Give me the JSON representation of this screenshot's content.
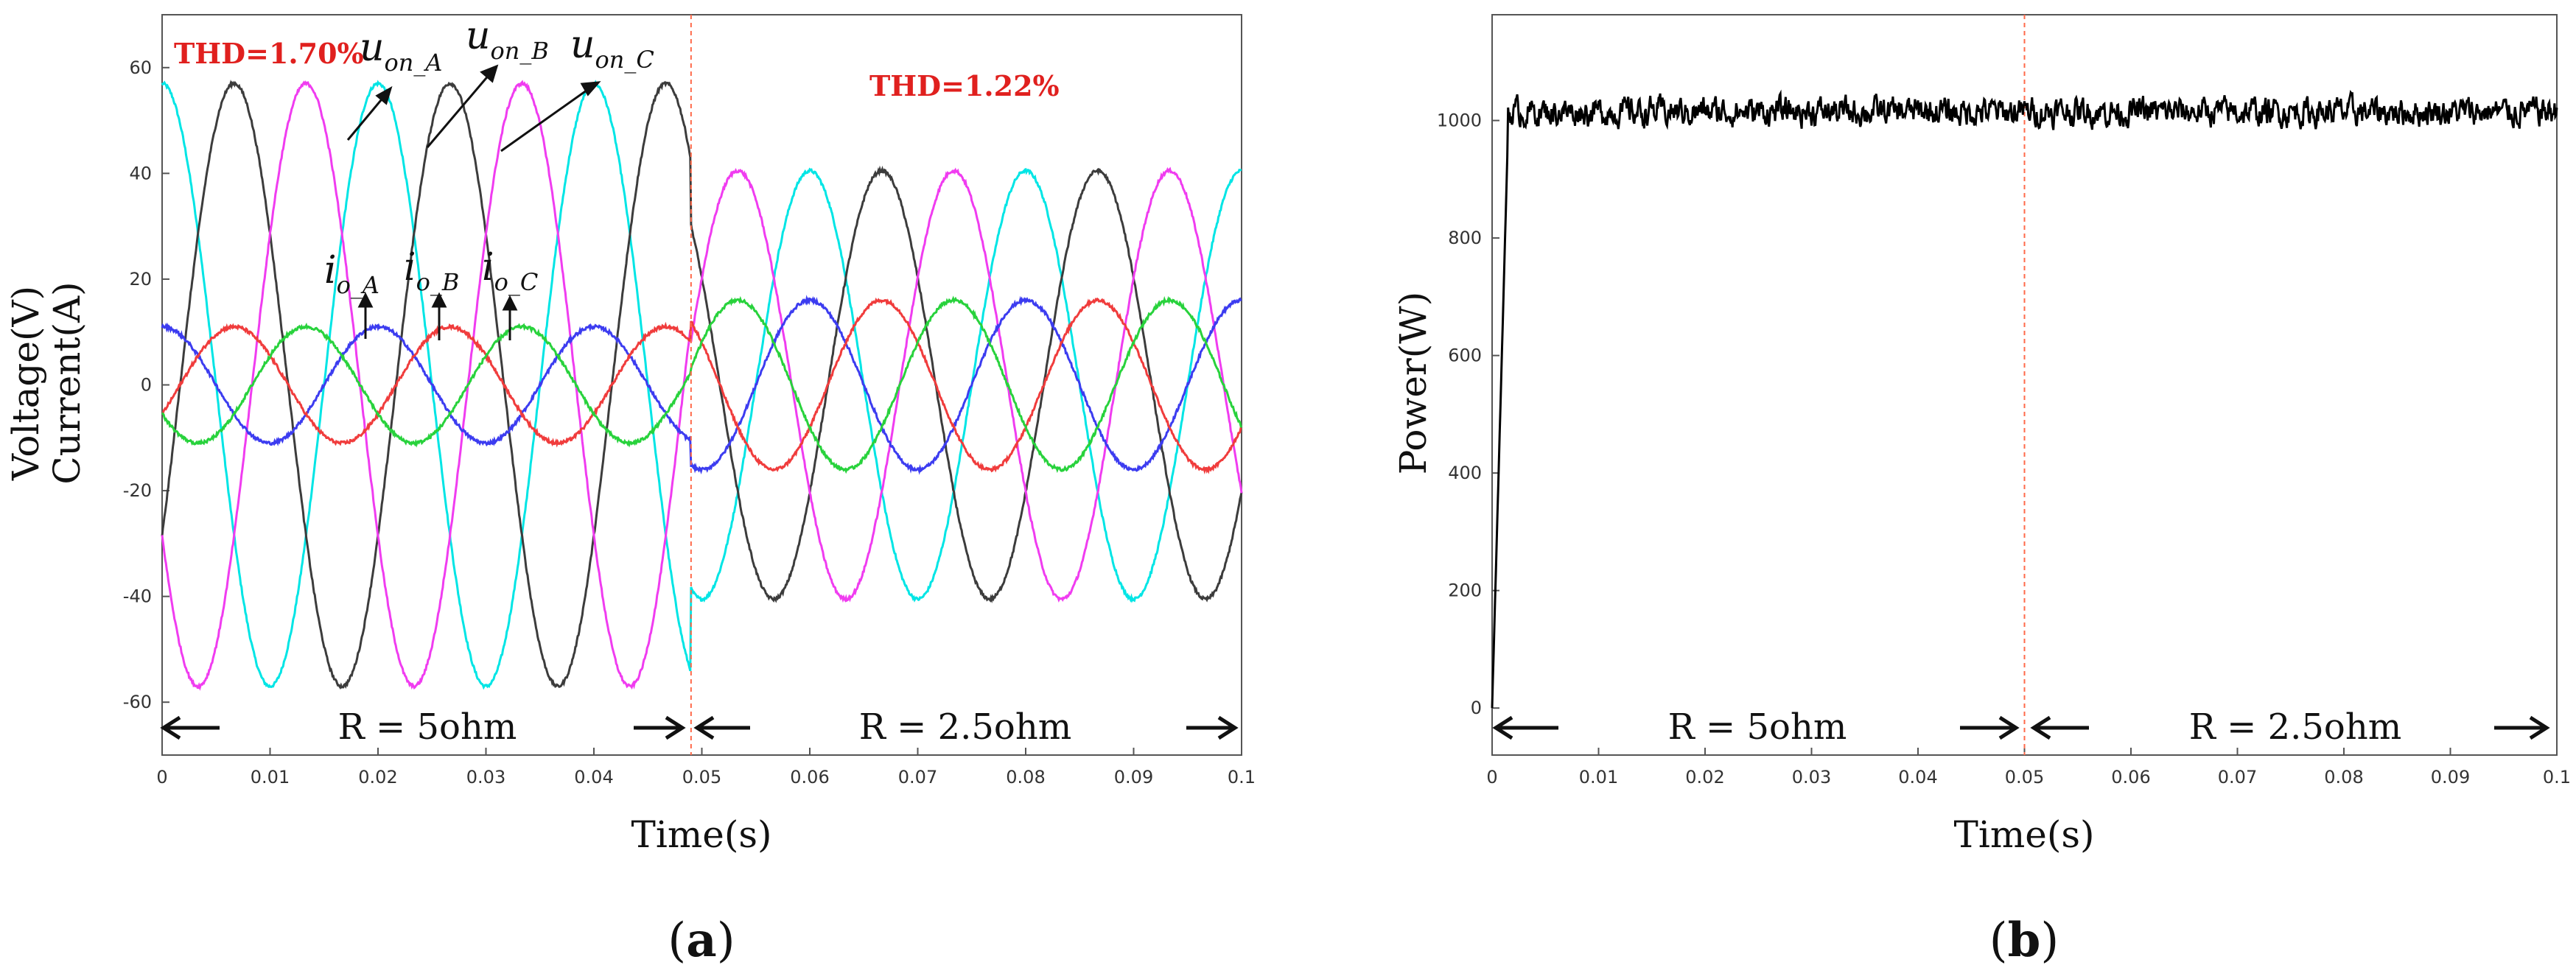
{
  "chart_data": [
    {
      "id": "a",
      "type": "line",
      "caption": "a",
      "xlabel": "Time(s)",
      "ylabel_line1": "Voltage(V)",
      "ylabel_line2": "Current(A)",
      "xlim": [
        0,
        0.1
      ],
      "ylim": [
        -70,
        70
      ],
      "xticks": [
        0,
        0.01,
        0.02,
        0.03,
        0.04,
        0.05,
        0.06,
        0.07,
        0.08,
        0.09,
        0.1
      ],
      "xtick_labels": [
        "0",
        "0.01",
        "0.02",
        "0.03",
        "0.04",
        "0.05",
        "0.06",
        "0.07",
        "0.08",
        "0.09",
        "0.1"
      ],
      "yticks": [
        -60,
        -40,
        -20,
        0,
        20,
        40,
        60
      ],
      "ytick_labels": [
        "-60",
        "-40",
        "-20",
        "0",
        "20",
        "40",
        "60"
      ],
      "frequency_hz": 50,
      "load_step_time": 0.049,
      "series": [
        {
          "name": "u_on_A",
          "color": "#00e5e5",
          "amp_before": 57,
          "amp_after": 40.5,
          "phase_deg": 90
        },
        {
          "name": "u_on_B",
          "color": "#3c3c3c",
          "amp_before": 57,
          "amp_after": 40.5,
          "phase_deg": -30
        },
        {
          "name": "u_on_C",
          "color": "#f03cf0",
          "amp_before": 57,
          "amp_after": 40.5,
          "phase_deg": 210
        },
        {
          "name": "i_o_A",
          "color": "#3c3cf0",
          "amp_before": 11,
          "amp_after": 16,
          "phase_deg": 90
        },
        {
          "name": "i_o_B",
          "color": "#f03c3c",
          "amp_before": 11,
          "amp_after": 16,
          "phase_deg": -30
        },
        {
          "name": "i_o_C",
          "color": "#28d23c",
          "amp_before": 11,
          "amp_after": 16,
          "phase_deg": 210
        }
      ],
      "annotations": {
        "thd_before": "THD=1.70%",
        "thd_after": "THD=1.22%",
        "region_before": "R = 5ohm",
        "region_after": "R = 2.5ohm",
        "u_main": "u",
        "u_sub_A": "on_A",
        "u_sub_B": "on_B",
        "u_sub_C": "on_C",
        "i_main": "i",
        "i_sub_A": "o_A",
        "i_sub_B": "o_B",
        "i_sub_C": "o_C"
      }
    },
    {
      "id": "b",
      "type": "line",
      "caption": "b",
      "xlabel": "Time(s)",
      "ylabel": "Power(W)",
      "xlim": [
        0,
        0.1
      ],
      "ylim": [
        -80,
        1180
      ],
      "xticks": [
        0,
        0.01,
        0.02,
        0.03,
        0.04,
        0.05,
        0.06,
        0.07,
        0.08,
        0.09,
        0.1
      ],
      "xtick_labels": [
        "0",
        "0.01",
        "0.02",
        "0.03",
        "0.04",
        "0.05",
        "0.06",
        "0.07",
        "0.08",
        "0.09",
        "0.1"
      ],
      "yticks": [
        0,
        200,
        400,
        600,
        800,
        1000
      ],
      "ytick_labels": [
        "0",
        "200",
        "400",
        "600",
        "800",
        "1000"
      ],
      "load_step_time": 0.05,
      "steady_value": 1015,
      "rise_time": 0.0015,
      "series": [
        {
          "name": "Power",
          "color": "#000000"
        }
      ],
      "annotations": {
        "region_before": "R = 5ohm",
        "region_after": "R = 2.5ohm"
      }
    }
  ],
  "captions": {
    "open": "(",
    "close": ")",
    "a": "a",
    "b": "b"
  }
}
